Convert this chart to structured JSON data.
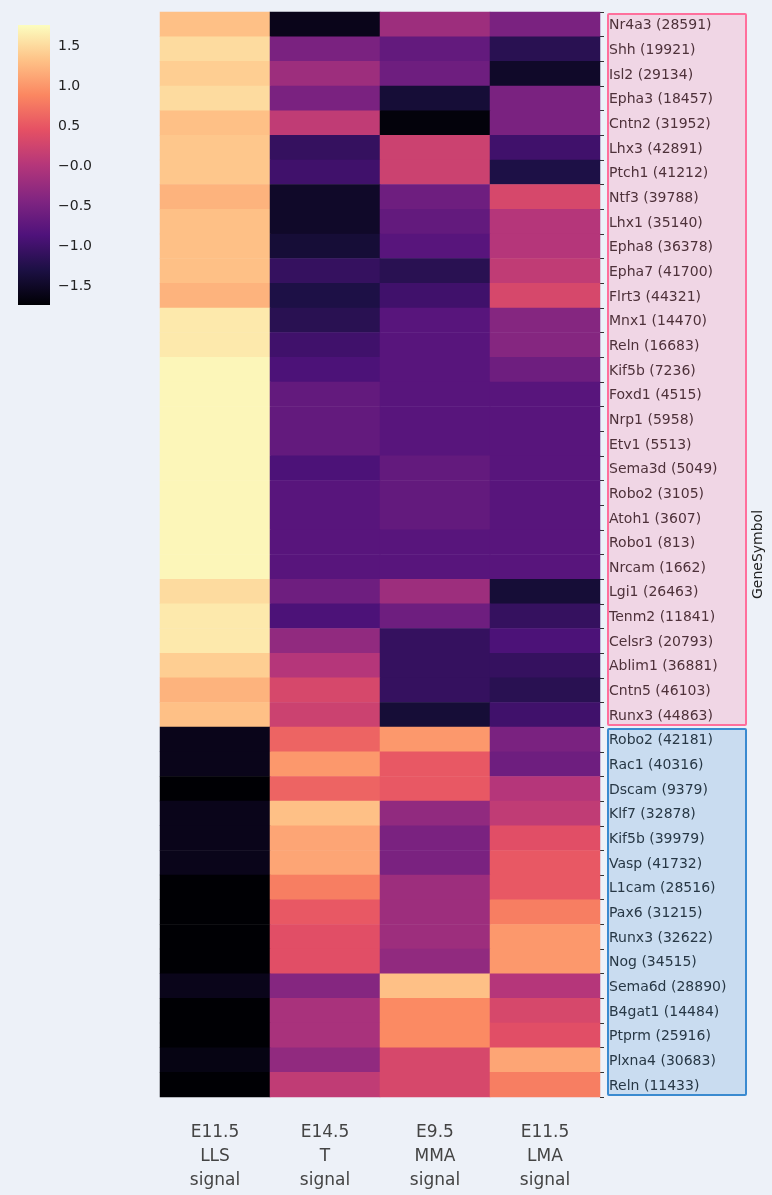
{
  "chart_data": {
    "type": "heatmap",
    "y2label": "GeneSymbol",
    "categories": [
      "E11.5\nLLS\nsignal",
      "E14.5\nT\nsignal",
      "E9.5\nMMA\nsignal",
      "E11.5\nLMA\nsignal"
    ],
    "y_categories": [
      "Nr4a3 (28591)",
      "Shh (19921)",
      "Isl2 (29134)",
      "Epha3 (18457)",
      "Cntn2 (31952)",
      "Lhx3 (42891)",
      "Ptch1 (41212)",
      "Ntf3 (39788)",
      "Lhx1 (35140)",
      "Epha8 (36378)",
      "Epha7 (41700)",
      "Flrt3 (44321)",
      "Mnx1 (14470)",
      "Reln (16683)",
      "Kif5b (7236)",
      "Foxd1 (4515)",
      "Nrp1 (5958)",
      "Etv1 (5513)",
      "Sema3d (5049)",
      "Robo2 (3105)",
      "Atoh1 (3607)",
      "Robo1 (813)",
      "Nrcam (1662)",
      "Lgi1 (26463)",
      "Tenm2 (11841)",
      "Celsr3 (20793)",
      "Ablim1 (36881)",
      "Cntn5 (46103)",
      "Runx3 (44863)",
      "Robo2 (42181)",
      "Rac1 (40316)",
      "Dscam (9379)",
      "Klf7 (32878)",
      "Kif5b (39979)",
      "Vasp (41732)",
      "L1cam (28516)",
      "Pax6 (31215)",
      "Runx3 (32622)",
      "Nog (34515)",
      "Sema6d (28890)",
      "B4gat1 (14484)",
      "Ptprm (25916)",
      "Plxna4 (30683)",
      "Reln (11433)"
    ],
    "cells": [
      [
        1.3,
        -1.6,
        -0.2,
        -0.5
      ],
      [
        1.5,
        -0.5,
        -0.7,
        -1.2
      ],
      [
        1.4,
        -0.2,
        -0.6,
        -1.5
      ],
      [
        1.5,
        -0.5,
        -1.4,
        -0.5
      ],
      [
        1.3,
        0.1,
        -1.7,
        -0.5
      ],
      [
        1.35,
        -1.1,
        0.2,
        -1.0
      ],
      [
        1.35,
        -1.0,
        0.2,
        -1.3
      ],
      [
        1.2,
        -1.5,
        -0.6,
        0.3
      ],
      [
        1.3,
        -1.5,
        -0.7,
        0.0
      ],
      [
        1.3,
        -1.4,
        -0.8,
        0.0
      ],
      [
        1.3,
        -1.1,
        -1.2,
        0.1
      ],
      [
        1.2,
        -1.3,
        -1.0,
        0.3
      ],
      [
        1.6,
        -1.2,
        -0.8,
        -0.4
      ],
      [
        1.6,
        -1.0,
        -0.8,
        -0.4
      ],
      [
        1.7,
        -0.9,
        -0.8,
        -0.6
      ],
      [
        1.7,
        -0.7,
        -0.8,
        -0.8
      ],
      [
        1.7,
        -0.7,
        -0.8,
        -0.8
      ],
      [
        1.7,
        -0.7,
        -0.8,
        -0.8
      ],
      [
        1.7,
        -0.9,
        -0.7,
        -0.8
      ],
      [
        1.7,
        -0.8,
        -0.7,
        -0.8
      ],
      [
        1.7,
        -0.8,
        -0.7,
        -0.8
      ],
      [
        1.7,
        -0.8,
        -0.8,
        -0.8
      ],
      [
        1.7,
        -0.8,
        -0.8,
        -0.8
      ],
      [
        1.5,
        -0.6,
        -0.2,
        -1.4
      ],
      [
        1.6,
        -0.9,
        -0.6,
        -1.1
      ],
      [
        1.6,
        -0.3,
        -1.1,
        -0.9
      ],
      [
        1.4,
        0.0,
        -1.1,
        -1.1
      ],
      [
        1.2,
        0.3,
        -1.1,
        -1.2
      ],
      [
        1.3,
        0.2,
        -1.4,
        -1.0
      ],
      [
        -1.6,
        0.6,
        1.0,
        -0.5
      ],
      [
        -1.6,
        1.0,
        0.5,
        -0.6
      ],
      [
        -1.75,
        0.6,
        0.5,
        0.0
      ],
      [
        -1.6,
        1.3,
        -0.3,
        0.1
      ],
      [
        -1.6,
        1.1,
        -0.5,
        0.4
      ],
      [
        -1.6,
        1.1,
        -0.5,
        0.5
      ],
      [
        -1.75,
        0.8,
        -0.2,
        0.5
      ],
      [
        -1.75,
        0.5,
        -0.2,
        0.8
      ],
      [
        -1.75,
        0.4,
        -0.2,
        1.0
      ],
      [
        -1.75,
        0.4,
        -0.3,
        1.0
      ],
      [
        -1.6,
        -0.4,
        1.3,
        0.0
      ],
      [
        -1.75,
        -0.1,
        0.9,
        0.3
      ],
      [
        -1.75,
        -0.1,
        0.9,
        0.4
      ],
      [
        -1.65,
        -0.3,
        0.3,
        1.1
      ],
      [
        -1.75,
        0.1,
        0.3,
        0.8
      ]
    ],
    "clim": [
      -1.75,
      1.75
    ],
    "cticks": [
      {
        "value": -1.5,
        "label": "−1.5"
      },
      {
        "value": -1,
        "label": "−1.0"
      },
      {
        "value": -0.5,
        "label": "−0.5"
      },
      {
        "value": 0,
        "label": "−0.0"
      },
      {
        "value": 0.5,
        "label": "0.5"
      },
      {
        "value": 1,
        "label": "1.0"
      },
      {
        "value": 1.5,
        "label": "1.5"
      }
    ]
  }
}
